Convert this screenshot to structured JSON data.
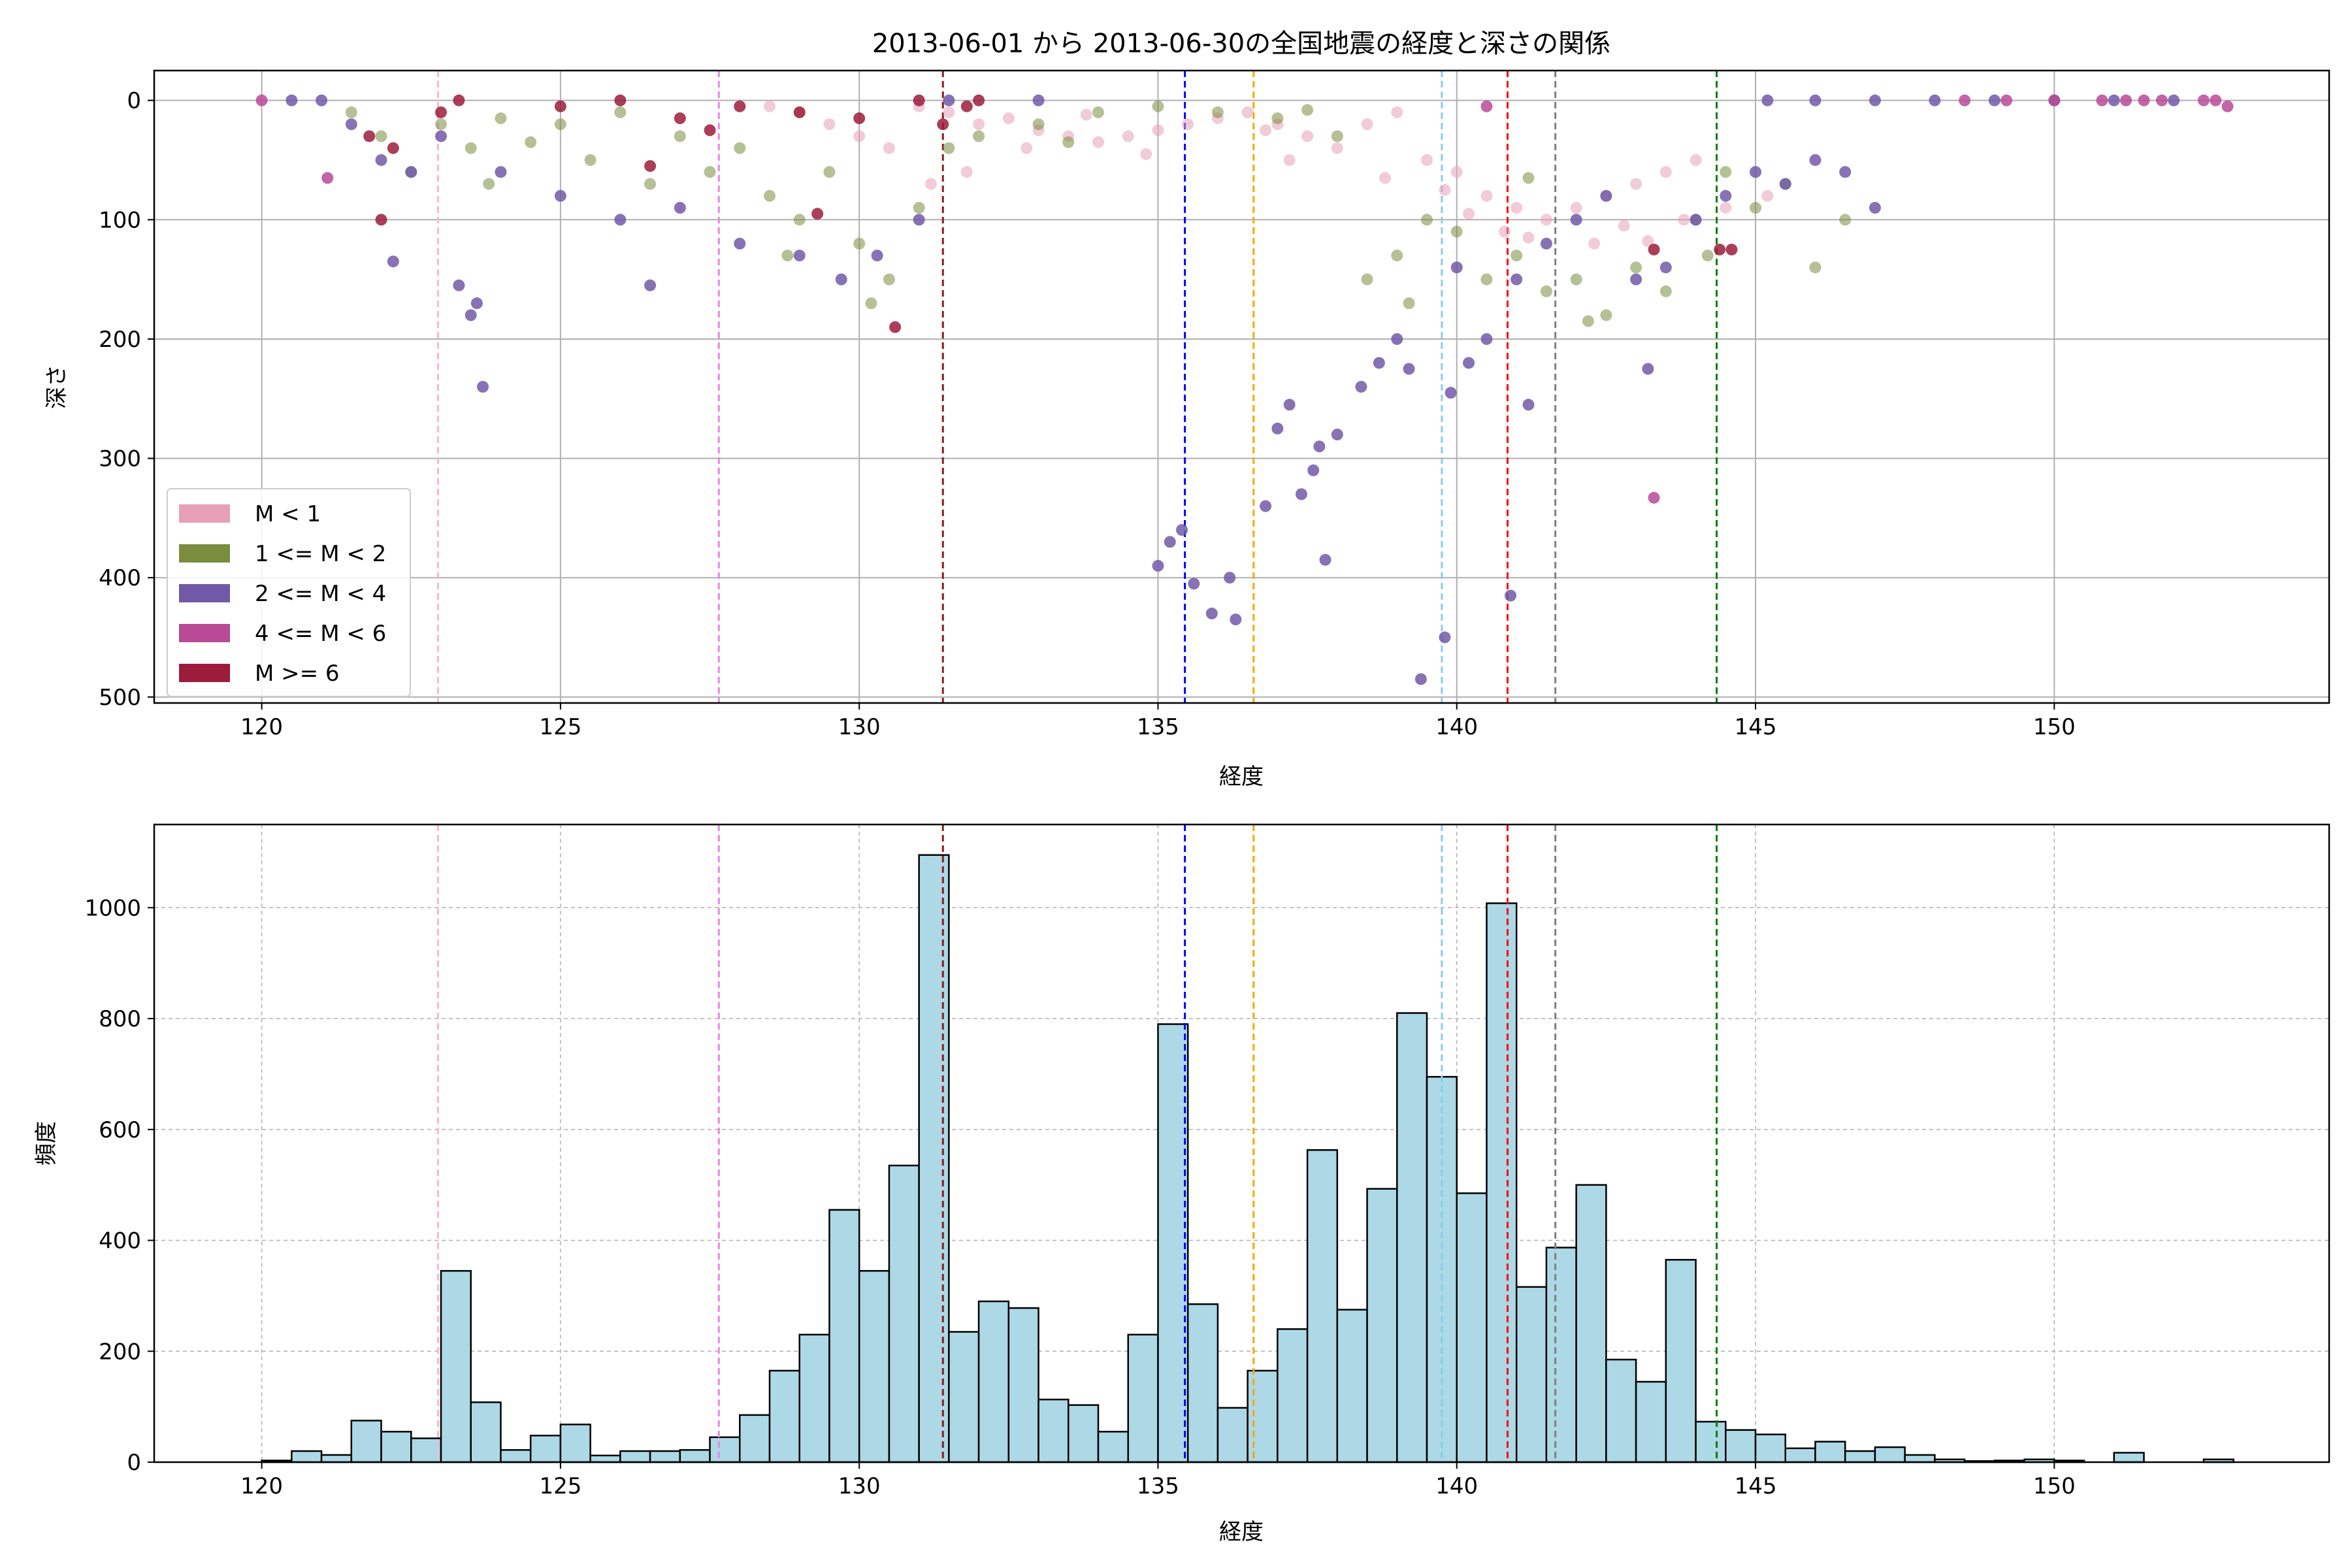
{
  "chart_data": [
    {
      "type": "scatter",
      "title": "2013-06-01 から 2013-06-30の全国地震の経度と深さの関係",
      "xlabel": "経度",
      "ylabel": "深さ",
      "xlim": [
        118.2,
        154.6
      ],
      "ylim": [
        505,
        -25
      ],
      "y_inverted": true,
      "xticks": [
        120,
        125,
        130,
        135,
        140,
        145,
        150
      ],
      "yticks": [
        0,
        100,
        200,
        300,
        400,
        500
      ],
      "grid": true,
      "legend_position": "lower-left",
      "series": [
        {
          "name": "M < 1",
          "color": "#e8a0b8",
          "points": [
            [
              131.0,
              5
            ],
            [
              131.5,
              10
            ],
            [
              132.0,
              20
            ],
            [
              132.5,
              15
            ],
            [
              133.0,
              25
            ],
            [
              133.5,
              30
            ],
            [
              134.0,
              35
            ],
            [
              134.5,
              30
            ],
            [
              135.0,
              25
            ],
            [
              135.5,
              20
            ],
            [
              136.0,
              15
            ],
            [
              136.5,
              10
            ],
            [
              137.0,
              20
            ],
            [
              137.5,
              30
            ],
            [
              138.0,
              40
            ],
            [
              138.5,
              20
            ],
            [
              139.0,
              10
            ],
            [
              139.5,
              50
            ],
            [
              140.0,
              60
            ],
            [
              140.5,
              80
            ],
            [
              141.0,
              90
            ],
            [
              141.5,
              100
            ],
            [
              142.0,
              90
            ],
            [
              142.5,
              80
            ],
            [
              143.0,
              70
            ],
            [
              143.5,
              60
            ],
            [
              144.0,
              50
            ],
            [
              130.5,
              40
            ],
            [
              130.0,
              30
            ],
            [
              129.5,
              20
            ],
            [
              129.0,
              10
            ],
            [
              128.5,
              5
            ],
            [
              131.2,
              70
            ],
            [
              131.8,
              60
            ],
            [
              132.8,
              40
            ],
            [
              134.8,
              45
            ],
            [
              136.8,
              25
            ],
            [
              137.2,
              50
            ],
            [
              139.8,
              75
            ],
            [
              140.8,
              110
            ],
            [
              142.3,
              120
            ],
            [
              143.8,
              100
            ],
            [
              144.5,
              90
            ],
            [
              145.2,
              80
            ],
            [
              140.2,
              95
            ],
            [
              141.2,
              115
            ],
            [
              142.8,
              105
            ],
            [
              143.2,
              118
            ],
            [
              138.8,
              65
            ],
            [
              133.8,
              12
            ]
          ]
        },
        {
          "name": "1 <= M < 2",
          "color": "#7a8c3e",
          "points": [
            [
              121.5,
              10
            ],
            [
              122.0,
              30
            ],
            [
              122.5,
              60
            ],
            [
              123.0,
              20
            ],
            [
              123.5,
              40
            ],
            [
              124.0,
              15
            ],
            [
              124.5,
              35
            ],
            [
              125.0,
              20
            ],
            [
              125.5,
              50
            ],
            [
              126.0,
              10
            ],
            [
              126.5,
              70
            ],
            [
              127.0,
              30
            ],
            [
              127.5,
              60
            ],
            [
              128.0,
              40
            ],
            [
              128.5,
              80
            ],
            [
              129.0,
              100
            ],
            [
              129.5,
              60
            ],
            [
              130.0,
              120
            ],
            [
              130.5,
              150
            ],
            [
              131.0,
              90
            ],
            [
              131.5,
              40
            ],
            [
              132.0,
              30
            ],
            [
              133.0,
              20
            ],
            [
              134.0,
              10
            ],
            [
              135.0,
              5
            ],
            [
              136.0,
              10
            ],
            [
              137.0,
              15
            ],
            [
              138.0,
              30
            ],
            [
              138.5,
              150
            ],
            [
              139.0,
              130
            ],
            [
              139.5,
              100
            ],
            [
              140.0,
              110
            ],
            [
              140.5,
              150
            ],
            [
              141.0,
              130
            ],
            [
              141.5,
              160
            ],
            [
              142.0,
              150
            ],
            [
              142.5,
              180
            ],
            [
              143.0,
              140
            ],
            [
              143.5,
              160
            ],
            [
              144.0,
              100
            ],
            [
              144.5,
              60
            ],
            [
              145.0,
              90
            ],
            [
              145.5,
              70
            ],
            [
              146.0,
              140
            ],
            [
              146.5,
              100
            ],
            [
              123.8,
              70
            ],
            [
              128.8,
              130
            ],
            [
              130.2,
              170
            ],
            [
              139.2,
              170
            ],
            [
              142.2,
              185
            ],
            [
              144.2,
              130
            ],
            [
              141.2,
              65
            ],
            [
              137.5,
              8
            ],
            [
              133.5,
              35
            ]
          ]
        },
        {
          "name": "2 <= M < 4",
          "color": "#7159a8",
          "points": [
            [
              120.5,
              0
            ],
            [
              121.0,
              0
            ],
            [
              121.5,
              20
            ],
            [
              122.0,
              50
            ],
            [
              122.2,
              135
            ],
            [
              122.5,
              60
            ],
            [
              123.0,
              30
            ],
            [
              123.3,
              155
            ],
            [
              123.5,
              180
            ],
            [
              123.6,
              170
            ],
            [
              123.7,
              240
            ],
            [
              124.0,
              60
            ],
            [
              125.0,
              80
            ],
            [
              126.0,
              100
            ],
            [
              126.5,
              155
            ],
            [
              127.0,
              90
            ],
            [
              128.0,
              120
            ],
            [
              129.0,
              130
            ],
            [
              129.7,
              150
            ],
            [
              130.3,
              130
            ],
            [
              131.0,
              100
            ],
            [
              131.5,
              0
            ],
            [
              133.0,
              0
            ],
            [
              135.0,
              390
            ],
            [
              135.2,
              370
            ],
            [
              135.4,
              360
            ],
            [
              135.6,
              405
            ],
            [
              135.9,
              430
            ],
            [
              136.2,
              400
            ],
            [
              136.3,
              435
            ],
            [
              136.8,
              340
            ],
            [
              137.0,
              275
            ],
            [
              137.2,
              255
            ],
            [
              137.4,
              330
            ],
            [
              137.6,
              310
            ],
            [
              137.7,
              290
            ],
            [
              137.8,
              385
            ],
            [
              138.0,
              280
            ],
            [
              138.4,
              240
            ],
            [
              138.7,
              220
            ],
            [
              139.0,
              200
            ],
            [
              139.2,
              225
            ],
            [
              139.4,
              485
            ],
            [
              139.8,
              450
            ],
            [
              139.9,
              245
            ],
            [
              140.0,
              140
            ],
            [
              140.2,
              220
            ],
            [
              140.5,
              200
            ],
            [
              140.9,
              415
            ],
            [
              141.0,
              150
            ],
            [
              141.2,
              255
            ],
            [
              141.5,
              120
            ],
            [
              142.0,
              100
            ],
            [
              142.5,
              80
            ],
            [
              143.0,
              150
            ],
            [
              143.2,
              225
            ],
            [
              143.5,
              140
            ],
            [
              144.0,
              100
            ],
            [
              144.5,
              80
            ],
            [
              145.0,
              60
            ],
            [
              145.5,
              70
            ],
            [
              146.0,
              50
            ],
            [
              146.5,
              60
            ],
            [
              147.0,
              90
            ],
            [
              145.2,
              0
            ],
            [
              146.0,
              0
            ],
            [
              147.0,
              0
            ],
            [
              148.0,
              0
            ],
            [
              149.0,
              0
            ],
            [
              150.0,
              0
            ],
            [
              151.0,
              0
            ],
            [
              152.0,
              0
            ]
          ]
        },
        {
          "name": "4 <= M < 6",
          "color": "#b84a96",
          "points": [
            [
              120.0,
              0
            ],
            [
              121.1,
              65
            ],
            [
              140.5,
              5
            ],
            [
              143.3,
              333
            ],
            [
              148.5,
              0
            ],
            [
              149.2,
              0
            ],
            [
              150.0,
              0
            ],
            [
              150.8,
              0
            ],
            [
              151.2,
              0
            ],
            [
              151.5,
              0
            ],
            [
              151.8,
              0
            ],
            [
              152.5,
              0
            ],
            [
              152.7,
              0
            ],
            [
              152.9,
              5
            ]
          ]
        },
        {
          "name": "M >= 6",
          "color": "#9c1c3c",
          "points": [
            [
              121.8,
              30
            ],
            [
              122.0,
              100
            ],
            [
              122.2,
              40
            ],
            [
              123.0,
              10
            ],
            [
              123.3,
              0
            ],
            [
              125.0,
              5
            ],
            [
              126.0,
              0
            ],
            [
              126.5,
              55
            ],
            [
              127.0,
              15
            ],
            [
              127.5,
              25
            ],
            [
              128.0,
              5
            ],
            [
              129.0,
              10
            ],
            [
              129.3,
              95
            ],
            [
              130.0,
              15
            ],
            [
              130.6,
              190
            ],
            [
              131.0,
              0
            ],
            [
              131.4,
              20
            ],
            [
              131.8,
              5
            ],
            [
              132.0,
              0
            ],
            [
              143.3,
              125
            ],
            [
              144.4,
              125
            ],
            [
              144.6,
              125
            ]
          ]
        }
      ],
      "vlines": [
        {
          "x": 122.95,
          "color": "#ffb6c8"
        },
        {
          "x": 127.65,
          "color": "#ee82ee"
        },
        {
          "x": 131.4,
          "color": "#8b1a1a"
        },
        {
          "x": 135.45,
          "color": "#0000ff"
        },
        {
          "x": 136.6,
          "color": "#ffa500"
        },
        {
          "x": 139.75,
          "color": "#87ceeb"
        },
        {
          "x": 140.85,
          "color": "#ff0000"
        },
        {
          "x": 141.65,
          "color": "#808080"
        },
        {
          "x": 144.35,
          "color": "#008000"
        }
      ]
    },
    {
      "type": "bar",
      "title": "",
      "xlabel": "経度",
      "ylabel": "頻度",
      "xlim": [
        118.2,
        154.6
      ],
      "ylim": [
        0,
        1150
      ],
      "xticks": [
        120,
        125,
        130,
        135,
        140,
        145,
        150
      ],
      "yticks": [
        0,
        200,
        400,
        600,
        800,
        1000
      ],
      "grid": true,
      "bar_color": "#add8e6",
      "bin_edges_start": 120.0,
      "bin_width": 0.5,
      "values": [
        3,
        20,
        13,
        75,
        55,
        43,
        345,
        108,
        22,
        48,
        68,
        12,
        20,
        20,
        22,
        45,
        85,
        165,
        230,
        455,
        345,
        535,
        1095,
        235,
        290,
        278,
        113,
        103,
        55,
        230,
        790,
        285,
        98,
        165,
        240,
        563,
        275,
        493,
        810,
        695,
        485,
        1008,
        316,
        387,
        500,
        185,
        145,
        365,
        73,
        58,
        50,
        25,
        37,
        20,
        27,
        13,
        5,
        2,
        3,
        5,
        3,
        0,
        17,
        0,
        0,
        5
      ],
      "vlines": [
        {
          "x": 122.95,
          "color": "#ffb6c8"
        },
        {
          "x": 127.65,
          "color": "#ee82ee"
        },
        {
          "x": 131.4,
          "color": "#8b1a1a"
        },
        {
          "x": 135.45,
          "color": "#0000ff"
        },
        {
          "x": 136.6,
          "color": "#ffa500"
        },
        {
          "x": 139.75,
          "color": "#87ceeb"
        },
        {
          "x": 140.85,
          "color": "#ff0000"
        },
        {
          "x": 141.65,
          "color": "#808080"
        },
        {
          "x": 144.35,
          "color": "#008000"
        }
      ]
    }
  ]
}
